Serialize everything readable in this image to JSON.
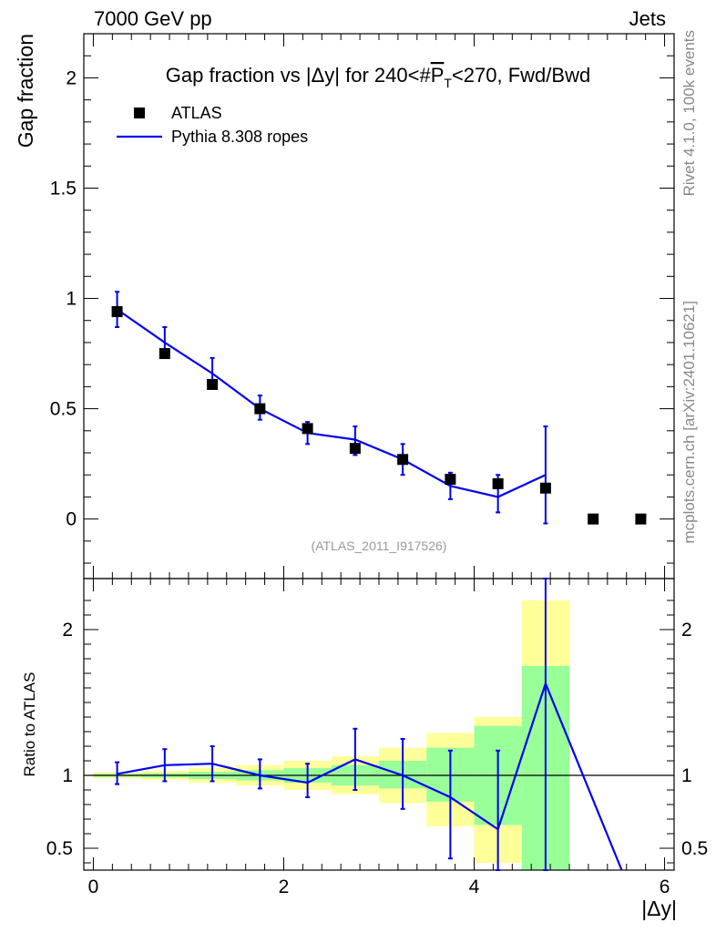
{
  "header": {
    "energy_label": "7000 GeV pp",
    "category_label": "Jets"
  },
  "side_labels": {
    "rivet": "Rivet 4.1.0,  100k events",
    "mcplots": "mcplots.cern.ch [arXiv:2401.10621]"
  },
  "chart_data": [
    {
      "type": "scatter",
      "title_parts": {
        "pre": "Gap fraction vs |Δy| for 240<#",
        "p": "P",
        "t": "T",
        "post": "<270, Fwd/Bwd"
      },
      "ylabel": "Gap fraction",
      "watermark": "(ATLAS_2011_I917526)",
      "ylim": [
        -0.27,
        2.2
      ],
      "xlim": [
        -0.1,
        6.1
      ],
      "yticks": [
        {
          "v": 0,
          "label": "0"
        },
        {
          "v": 0.5,
          "label": "0.5"
        },
        {
          "v": 1,
          "label": "1"
        },
        {
          "v": 1.5,
          "label": "1.5"
        },
        {
          "v": 2,
          "label": "2"
        }
      ],
      "legend": {
        "position": "top-left",
        "data_label": "ATLAS",
        "mc_label": "Pythia 8.308 ropes"
      },
      "series": [
        {
          "name": "ATLAS",
          "x": [
            0.25,
            0.75,
            1.25,
            1.75,
            2.25,
            2.75,
            3.25,
            3.75,
            4.25,
            4.75,
            5.25,
            5.75
          ],
          "y": [
            0.94,
            0.75,
            0.61,
            0.5,
            0.41,
            0.32,
            0.27,
            0.18,
            0.16,
            0.14,
            0.0,
            0.0
          ]
        },
        {
          "name": "Pythia 8.308 ropes",
          "x": [
            0.25,
            0.75,
            1.25,
            1.75,
            2.25,
            2.75,
            3.25,
            3.75,
            4.25,
            4.75
          ],
          "y": [
            0.95,
            0.8,
            0.66,
            0.5,
            0.39,
            0.36,
            0.27,
            0.15,
            0.1,
            0.2
          ],
          "err_low": [
            0.87,
            0.73,
            0.59,
            0.45,
            0.34,
            0.29,
            0.2,
            0.09,
            0.03,
            -0.02
          ],
          "err_high": [
            1.03,
            0.87,
            0.73,
            0.56,
            0.44,
            0.42,
            0.34,
            0.21,
            0.2,
            0.42
          ]
        }
      ]
    },
    {
      "type": "line",
      "ylabel": "Ratio to ATLAS",
      "xlabel": "|Δy|",
      "ylim": [
        0.35,
        2.35
      ],
      "xlim": [
        -0.1,
        6.1
      ],
      "xticks": [
        {
          "v": 0,
          "label": "0"
        },
        {
          "v": 2,
          "label": "2"
        },
        {
          "v": 4,
          "label": "4"
        },
        {
          "v": 6,
          "label": "6"
        }
      ],
      "yticks": [
        {
          "v": 0.5,
          "label": "0.5"
        },
        {
          "v": 1,
          "label": "1"
        },
        {
          "v": 2,
          "label": "2"
        }
      ],
      "bands": [
        {
          "x0": 0.0,
          "x1": 0.5,
          "y_lo": 0.98,
          "y_hi": 1.02,
          "g_lo": 0.99,
          "g_hi": 1.01
        },
        {
          "x0": 0.5,
          "x1": 1.0,
          "y_lo": 0.97,
          "y_hi": 1.03,
          "g_lo": 0.985,
          "g_hi": 1.015
        },
        {
          "x0": 1.0,
          "x1": 1.5,
          "y_lo": 0.95,
          "y_hi": 1.05,
          "g_lo": 0.975,
          "g_hi": 1.025
        },
        {
          "x0": 1.5,
          "x1": 2.0,
          "y_lo": 0.93,
          "y_hi": 1.07,
          "g_lo": 0.965,
          "g_hi": 1.035
        },
        {
          "x0": 2.0,
          "x1": 2.5,
          "y_lo": 0.9,
          "y_hi": 1.1,
          "g_lo": 0.95,
          "g_hi": 1.05
        },
        {
          "x0": 2.5,
          "x1": 3.0,
          "y_lo": 0.87,
          "y_hi": 1.13,
          "g_lo": 0.93,
          "g_hi": 1.07
        },
        {
          "x0": 3.0,
          "x1": 3.5,
          "y_lo": 0.81,
          "y_hi": 1.19,
          "g_lo": 0.91,
          "g_hi": 1.1
        },
        {
          "x0": 3.5,
          "x1": 4.0,
          "y_lo": 0.65,
          "y_hi": 1.29,
          "g_lo": 0.82,
          "g_hi": 1.19
        },
        {
          "x0": 4.0,
          "x1": 4.5,
          "y_lo": 0.4,
          "y_hi": 1.4,
          "g_lo": 0.66,
          "g_hi": 1.34
        },
        {
          "x0": 4.5,
          "x1": 5.0,
          "y_lo": 0.35,
          "y_hi": 2.2,
          "g_lo": 0.35,
          "g_hi": 1.75
        }
      ],
      "series": [
        {
          "name": "Pythia 8.308 ropes",
          "x": [
            0.25,
            0.75,
            1.25,
            1.75,
            2.25,
            2.75,
            3.25,
            3.75,
            4.25,
            4.75,
            5.55
          ],
          "y": [
            1.01,
            1.07,
            1.08,
            1.0,
            0.95,
            1.11,
            1.0,
            0.85,
            0.63,
            1.63,
            0.35
          ],
          "err_low": [
            0.94,
            0.96,
            0.96,
            0.91,
            0.85,
            0.9,
            0.77,
            0.43,
            0.35,
            0.35,
            null
          ],
          "err_high": [
            1.09,
            1.18,
            1.2,
            1.11,
            1.08,
            1.32,
            1.25,
            1.17,
            1.17,
            2.35,
            null
          ]
        }
      ]
    }
  ]
}
